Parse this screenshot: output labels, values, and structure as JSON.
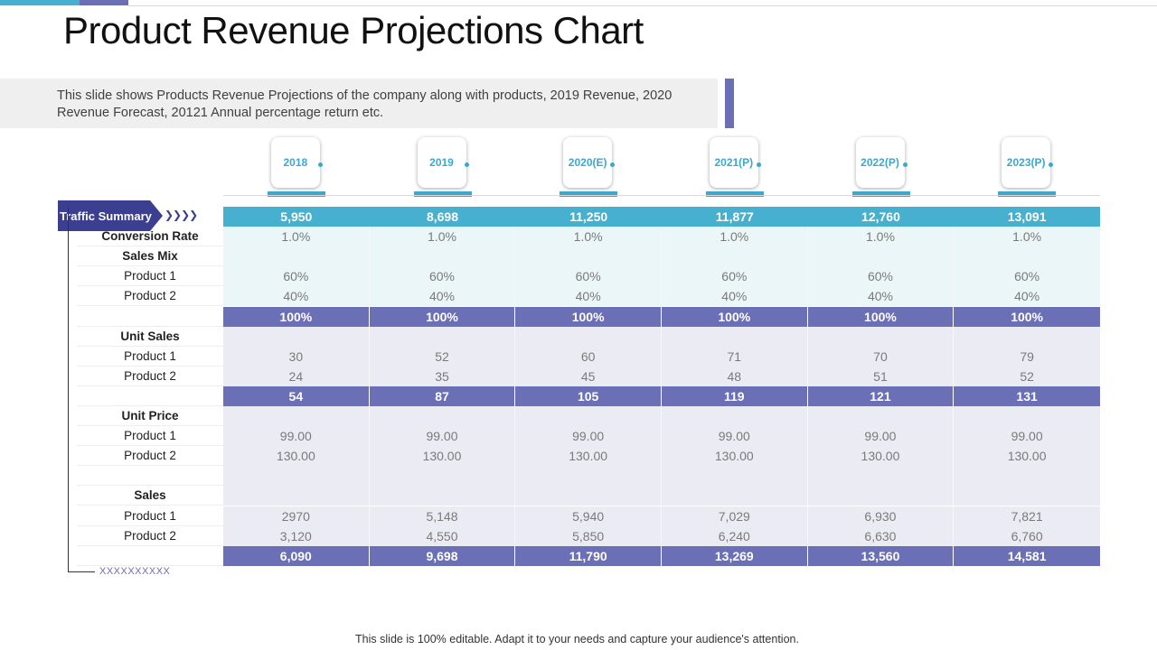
{
  "title": "Product Revenue Projections Chart",
  "description": "This slide shows Products Revenue Projections of the company along with products, 2019 Revenue,  2020 Revenue Forecast, 20121 Annual percentage return etc.",
  "footer": "This slide is 100% editable. Adapt it to your needs and capture your audience's attention.",
  "placeholder": "XXXXXXXXXX",
  "traffic_label": "Traffic Summary",
  "chevrons": "❯❯❯❯",
  "colors": {
    "accent_blue": "#47b0cf",
    "accent_purple": "#6b6fb5",
    "dark_navy": "#3c3f8f"
  },
  "chart_data": {
    "type": "table",
    "title": "Product Revenue Projections Chart",
    "columns": [
      "2018",
      "2019",
      "2020(E)",
      "2021(P)",
      "2022(P)",
      "2023(P)"
    ],
    "rows": [
      {
        "label": "",
        "style": "cyan",
        "values": [
          "5,950",
          "8,698",
          "11,250",
          "11,877",
          "12,760",
          "13,091"
        ]
      },
      {
        "label": "Conversion Rate",
        "style": "light-cyan",
        "bold": true,
        "values": [
          "1.0%",
          "1.0%",
          "1.0%",
          "1.0%",
          "1.0%",
          "1.0%"
        ]
      },
      {
        "label": "Sales Mix",
        "style": "light-cyan",
        "bold": true,
        "values": [
          "",
          "",
          "",
          "",
          "",
          ""
        ]
      },
      {
        "label": "Product 1",
        "style": "light-cyan",
        "bold": false,
        "values": [
          "60%",
          "60%",
          "60%",
          "60%",
          "60%",
          "60%"
        ]
      },
      {
        "label": "Product 2",
        "style": "light-cyan",
        "bold": false,
        "values": [
          "40%",
          "40%",
          "40%",
          "40%",
          "40%",
          "40%"
        ]
      },
      {
        "label": "",
        "style": "total",
        "values": [
          "100%",
          "100%",
          "100%",
          "100%",
          "100%",
          "100%"
        ]
      },
      {
        "label": "Unit Sales",
        "style": "light-lav",
        "bold": true,
        "values": [
          "",
          "",
          "",
          "",
          "",
          ""
        ]
      },
      {
        "label": "Product 1",
        "style": "light-lav",
        "bold": false,
        "values": [
          "30",
          "52",
          "60",
          "71",
          "70",
          "79"
        ]
      },
      {
        "label": "Product 2",
        "style": "light-lav",
        "bold": false,
        "values": [
          "24",
          "35",
          "45",
          "48",
          "51",
          "52"
        ]
      },
      {
        "label": "",
        "style": "total",
        "values": [
          "54",
          "87",
          "105",
          "119",
          "121",
          "131"
        ]
      },
      {
        "label": "Unit Price",
        "style": "light-lav",
        "bold": true,
        "values": [
          "",
          "",
          "",
          "",
          "",
          ""
        ]
      },
      {
        "label": "Product 1",
        "style": "light-lav",
        "bold": false,
        "values": [
          "99.00",
          "99.00",
          "99.00",
          "99.00",
          "99.00",
          "99.00"
        ]
      },
      {
        "label": "Product 2",
        "style": "light-lav",
        "bold": false,
        "values": [
          "130.00",
          "130.00",
          "130.00",
          "130.00",
          "130.00",
          "130.00"
        ]
      },
      {
        "label": "",
        "style": "light-lav",
        "bold": false,
        "values": [
          "",
          "",
          "",
          "",
          "",
          ""
        ]
      },
      {
        "label": "Sales",
        "style": "light-lav",
        "bold": true,
        "values": [
          "",
          "",
          "",
          "",
          "",
          ""
        ]
      },
      {
        "label": "Product 1",
        "style": "light-lav",
        "bold": false,
        "values": [
          "2970",
          "5,148",
          "5,940",
          "7,029",
          "6,930",
          "7,821"
        ]
      },
      {
        "label": "Product 2",
        "style": "light-lav",
        "bold": false,
        "values": [
          "3,120",
          "4,550",
          "5,850",
          "6,240",
          "6,630",
          "6,760"
        ]
      },
      {
        "label": "",
        "style": "total",
        "values": [
          "6,090",
          "9,698",
          "11,790",
          "13,269",
          "13,560",
          "14,581"
        ]
      }
    ]
  }
}
